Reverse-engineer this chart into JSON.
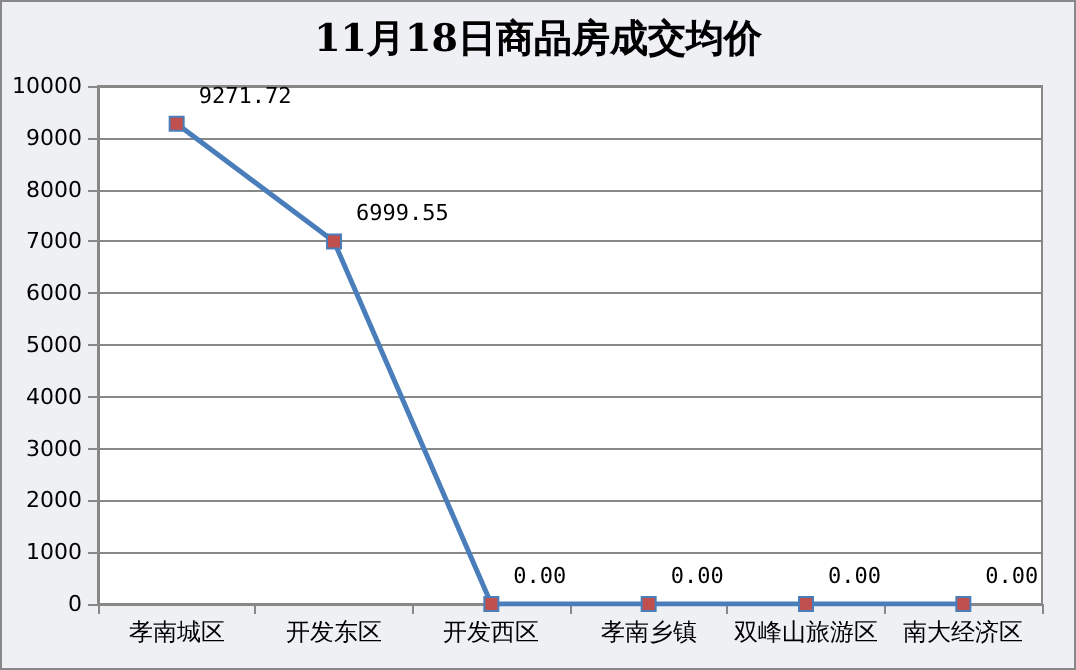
{
  "chart_data": {
    "type": "line",
    "title": "11月18日商品房成交均价",
    "categories": [
      "孝南城区",
      "开发东区",
      "开发西区",
      "孝南乡镇",
      "双峰山旅游区",
      "南大经济区"
    ],
    "series": [
      {
        "color": "#4a7ebb",
        "colors": [
          "#c0504d",
          "#c0504d",
          "#c0504d",
          "#c0504d",
          "#c0504d",
          "#c0504d"
        ],
        "values": [
          9271.72,
          6999.55,
          0,
          0,
          0,
          0
        ],
        "value_labels": [
          "9271.72",
          "6999.55",
          "0.00",
          "0.00",
          "0.00",
          "0.00"
        ]
      }
    ],
    "ylim": [
      0,
      10000
    ],
    "yticks": [
      0,
      1000,
      2000,
      3000,
      4000,
      5000,
      6000,
      7000,
      8000,
      9000,
      10000
    ],
    "grid": "y",
    "marker": "square",
    "line_style": "solid"
  }
}
